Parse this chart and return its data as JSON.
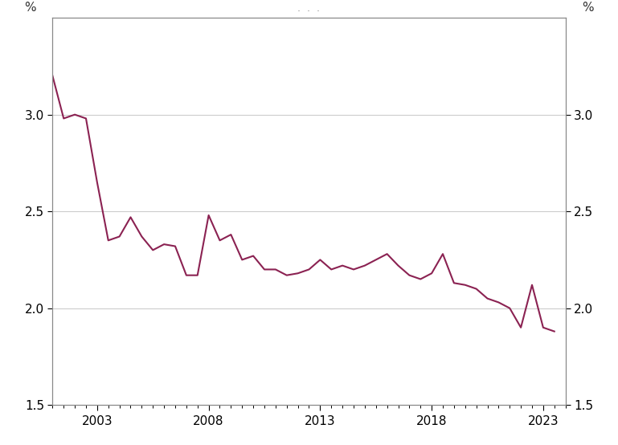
{
  "line_color": "#8B2252",
  "background_color": "#ffffff",
  "ylim": [
    1.5,
    3.5
  ],
  "yticks": [
    1.5,
    2.0,
    2.5,
    3.0
  ],
  "ylabel_left": "%",
  "ylabel_right": "%",
  "grid_color": "#cccccc",
  "xlim": [
    2001.0,
    2024.0
  ],
  "x_tick_positions": [
    2003,
    2008,
    2013,
    2018,
    2023
  ],
  "x_labels": [
    "2003",
    "2008",
    "2013",
    "2018",
    "2023"
  ],
  "data": [
    [
      2001.0,
      3.2
    ],
    [
      2001.5,
      2.98
    ],
    [
      2002.0,
      3.0
    ],
    [
      2002.5,
      2.98
    ],
    [
      2003.0,
      2.65
    ],
    [
      2003.5,
      2.35
    ],
    [
      2004.0,
      2.37
    ],
    [
      2004.5,
      2.47
    ],
    [
      2005.0,
      2.37
    ],
    [
      2005.5,
      2.3
    ],
    [
      2006.0,
      2.33
    ],
    [
      2006.5,
      2.32
    ],
    [
      2007.0,
      2.17
    ],
    [
      2007.5,
      2.17
    ],
    [
      2008.0,
      2.48
    ],
    [
      2008.5,
      2.35
    ],
    [
      2009.0,
      2.38
    ],
    [
      2009.5,
      2.25
    ],
    [
      2010.0,
      2.27
    ],
    [
      2010.5,
      2.2
    ],
    [
      2011.0,
      2.2
    ],
    [
      2011.5,
      2.17
    ],
    [
      2012.0,
      2.18
    ],
    [
      2012.5,
      2.2
    ],
    [
      2013.0,
      2.25
    ],
    [
      2013.5,
      2.2
    ],
    [
      2014.0,
      2.22
    ],
    [
      2014.5,
      2.2
    ],
    [
      2015.0,
      2.22
    ],
    [
      2015.5,
      2.25
    ],
    [
      2016.0,
      2.28
    ],
    [
      2016.5,
      2.22
    ],
    [
      2017.0,
      2.17
    ],
    [
      2017.5,
      2.15
    ],
    [
      2018.0,
      2.18
    ],
    [
      2018.5,
      2.28
    ],
    [
      2019.0,
      2.13
    ],
    [
      2019.5,
      2.12
    ],
    [
      2020.0,
      2.1
    ],
    [
      2020.5,
      2.05
    ],
    [
      2021.0,
      2.03
    ],
    [
      2021.5,
      2.0
    ],
    [
      2022.0,
      1.9
    ],
    [
      2022.5,
      2.12
    ],
    [
      2023.0,
      1.9
    ],
    [
      2023.5,
      1.88
    ]
  ]
}
